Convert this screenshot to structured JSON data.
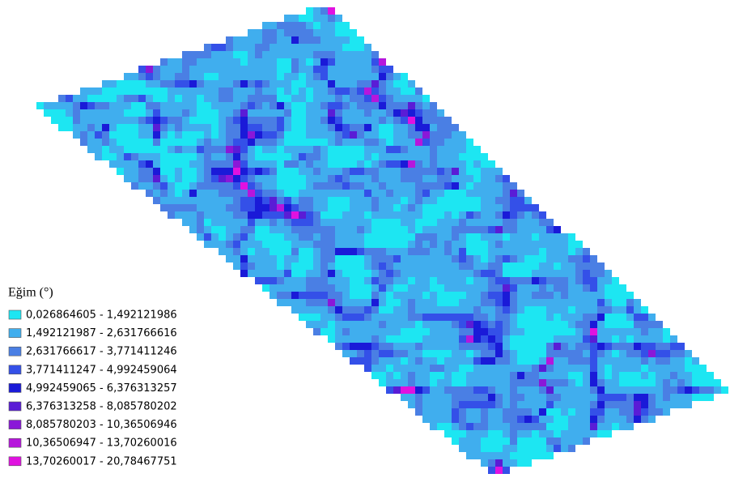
{
  "legend": {
    "title": "Eğim (°)",
    "items": [
      {
        "label": "0,026864605 - 1,492121986",
        "color": "#1de6f2"
      },
      {
        "label": "1,492121987 - 2,631766616",
        "color": "#40aeee"
      },
      {
        "label": "2,631766617 - 3,771411246",
        "color": "#4a7fe4"
      },
      {
        "label": "3,771411247 - 4,992459064",
        "color": "#3450e8"
      },
      {
        "label": "4,992459065 - 6,376313257",
        "color": "#1a1ad8"
      },
      {
        "label": "6,376313258 - 8,085780202",
        "color": "#5a1cd6"
      },
      {
        "label": "8,085780203 - 10,36506946",
        "color": "#8a18d8"
      },
      {
        "label": "10,36506947 - 13,70260016",
        "color": "#b616dc"
      },
      {
        "label": "13,70260017 - 20,78467751",
        "color": "#e012e0"
      }
    ]
  }
}
